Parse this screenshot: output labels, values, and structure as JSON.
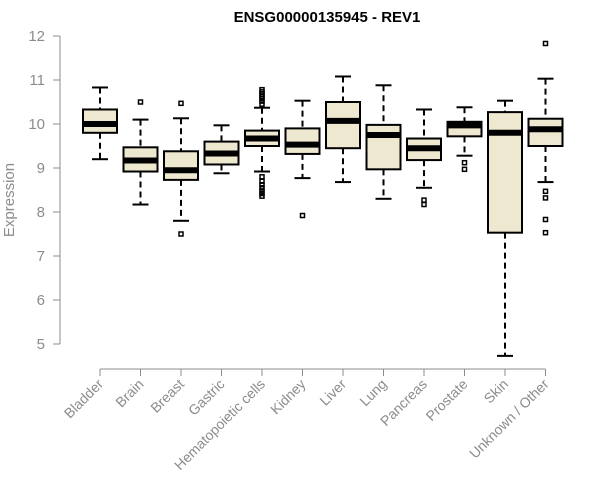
{
  "chart_data": {
    "type": "boxplot",
    "title": "ENSG00000135945 - REV1",
    "xlabel": "",
    "ylabel": "Expression",
    "ylim": [
      4.7,
      12.0
    ],
    "yticks": [
      5,
      6,
      7,
      8,
      9,
      10,
      11,
      12
    ],
    "categories": [
      "Bladder",
      "Brain",
      "Breast",
      "Gastric",
      "Hematopoietic cells",
      "Kidney",
      "Liver",
      "Lung",
      "Pancreas",
      "Prostate",
      "Skin",
      "Unknown / Other"
    ],
    "boxes": [
      {
        "name": "Bladder",
        "whisker_low": 9.2,
        "q1": 9.8,
        "median": 10.0,
        "q3": 10.33,
        "whisker_high": 10.83,
        "outliers": []
      },
      {
        "name": "Brain",
        "whisker_low": 8.17,
        "q1": 8.92,
        "median": 9.17,
        "q3": 9.47,
        "whisker_high": 10.1,
        "outliers": [
          10.5
        ]
      },
      {
        "name": "Breast",
        "whisker_low": 7.8,
        "q1": 8.73,
        "median": 8.95,
        "q3": 9.38,
        "whisker_high": 10.13,
        "outliers": [
          10.47,
          7.5
        ]
      },
      {
        "name": "Gastric",
        "whisker_low": 8.88,
        "q1": 9.08,
        "median": 9.33,
        "q3": 9.6,
        "whisker_high": 9.97,
        "outliers": []
      },
      {
        "name": "Hematopoietic cells",
        "whisker_low": 8.92,
        "q1": 9.5,
        "median": 9.67,
        "q3": 9.85,
        "whisker_high": 10.37,
        "outliers": [
          10.45,
          10.52,
          10.58,
          10.63,
          10.68,
          10.73,
          10.78,
          8.8,
          8.7,
          8.62,
          8.55,
          8.48,
          8.42,
          8.36
        ]
      },
      {
        "name": "Kidney",
        "whisker_low": 8.77,
        "q1": 9.32,
        "median": 9.53,
        "q3": 9.9,
        "whisker_high": 10.53,
        "outliers": [
          7.92
        ]
      },
      {
        "name": "Liver",
        "whisker_low": 8.68,
        "q1": 9.45,
        "median": 10.07,
        "q3": 10.5,
        "whisker_high": 11.08,
        "outliers": []
      },
      {
        "name": "Lung",
        "whisker_low": 8.3,
        "q1": 8.97,
        "median": 9.75,
        "q3": 9.98,
        "whisker_high": 10.88,
        "outliers": []
      },
      {
        "name": "Pancreas",
        "whisker_low": 8.55,
        "q1": 9.18,
        "median": 9.45,
        "q3": 9.67,
        "whisker_high": 10.33,
        "outliers": [
          8.27,
          8.17
        ]
      },
      {
        "name": "Prostate",
        "whisker_low": 9.28,
        "q1": 9.72,
        "median": 9.97,
        "q3": 10.05,
        "whisker_high": 10.38,
        "outliers": [
          9.12,
          8.97
        ]
      },
      {
        "name": "Skin",
        "whisker_low": 4.73,
        "q1": 7.53,
        "median": 9.8,
        "q3": 10.27,
        "whisker_high": 10.53,
        "outliers": []
      },
      {
        "name": "Unknown / Other",
        "whisker_low": 8.68,
        "q1": 9.5,
        "median": 9.88,
        "q3": 10.12,
        "whisker_high": 11.03,
        "outliers": [
          11.83,
          8.47,
          8.32,
          7.83,
          7.53
        ]
      }
    ],
    "colors": {
      "box_fill": "#efe8d0",
      "box_stroke": "#000000",
      "axis": "#8c8c8c"
    },
    "grid": false,
    "legend": "none"
  }
}
